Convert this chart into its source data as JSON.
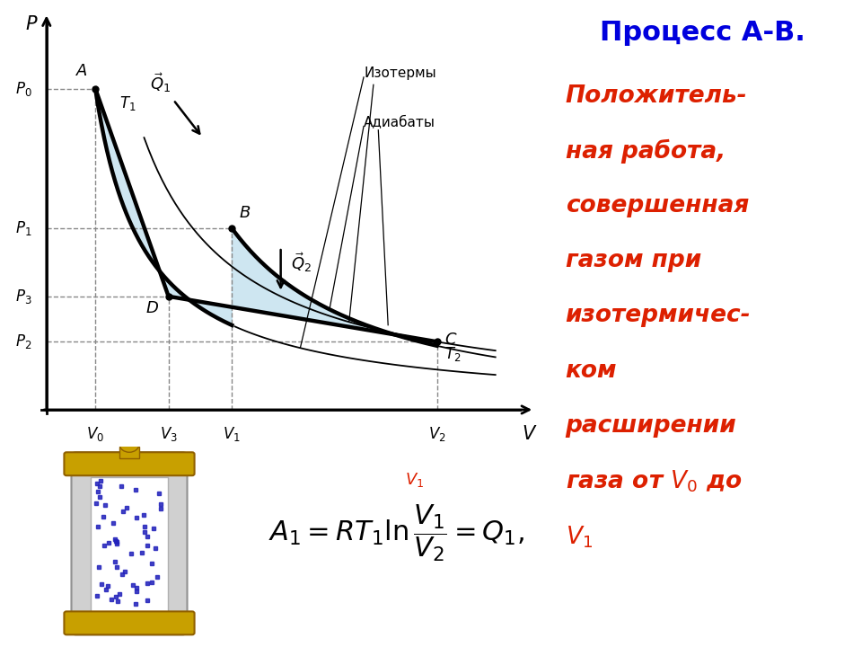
{
  "bg_color_right": "#ffffcc",
  "fill_color": "#aed6e8",
  "fill_alpha": 0.6,
  "curve_lw": 3.2,
  "dashed_color": "#888888",
  "point_A": [
    1.0,
    8.5
  ],
  "point_B": [
    3.8,
    4.8
  ],
  "point_C": [
    8.0,
    1.8
  ],
  "point_D": [
    2.5,
    3.0
  ],
  "V0": 1.0,
  "V1": 3.8,
  "V2": 8.0,
  "V3": 2.5,
  "P0": 8.5,
  "P1": 4.8,
  "P2": 1.8,
  "P3": 3.0,
  "xmax": 10.0,
  "ymax": 10.5,
  "gamma": 1.4,
  "title_text": "Процесс А-В.",
  "title_color": "#0000dd",
  "body_color": "#dd2000",
  "label_izot": "Изотермы",
  "label_adiab": "Адиабаты"
}
